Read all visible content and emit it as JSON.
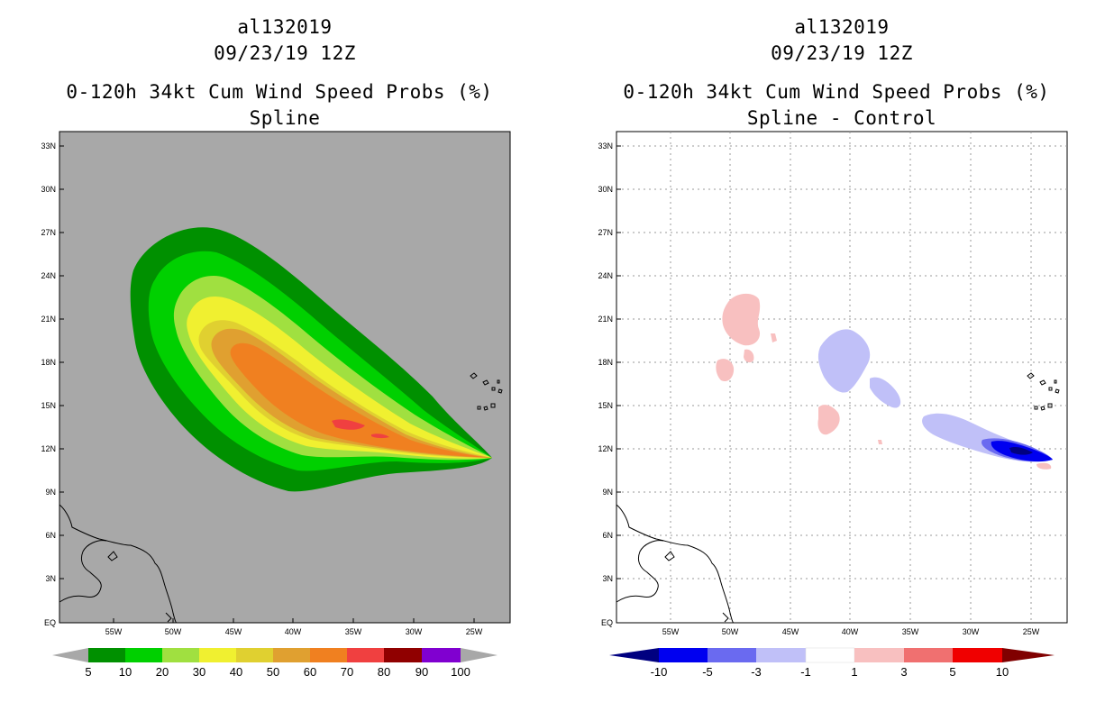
{
  "left": {
    "storm_id": "al132019",
    "datetime": "09/23/19 12Z",
    "title": "0-120h 34kt Cum Wind Speed Probs (%)",
    "subtitle": "Spline"
  },
  "right": {
    "storm_id": "al132019",
    "datetime": "09/23/19 12Z",
    "title": "0-120h 34kt Cum Wind Speed Probs (%)",
    "subtitle": "Spline - Control"
  },
  "axes": {
    "lat_labels": [
      "33N",
      "30N",
      "27N",
      "24N",
      "21N",
      "18N",
      "15N",
      "12N",
      "9N",
      "6N",
      "3N",
      "EQ"
    ],
    "lon_labels": [
      "55W",
      "50W",
      "45W",
      "40W",
      "35W",
      "30W",
      "25W"
    ]
  },
  "left_colorbar": {
    "colors": [
      "#009000",
      "#00d000",
      "#a0e040",
      "#f0f030",
      "#e0d030",
      "#e0a030",
      "#f08020",
      "#f04040",
      "#900000",
      "#8000d0"
    ],
    "labels": [
      "5",
      "10",
      "20",
      "30",
      "40",
      "50",
      "60",
      "70",
      "80",
      "90",
      "100"
    ]
  },
  "right_colorbar": {
    "colors": [
      "#000080",
      "#0000f0",
      "#6a6af0",
      "#c0c0f8",
      "#ffffff",
      "#f8c0c0",
      "#f07070",
      "#f00000",
      "#800000"
    ],
    "labels": [
      "-10",
      "-5",
      "-3",
      "-1",
      "1",
      "3",
      "5",
      "10"
    ]
  },
  "colors": {
    "ocean_bg": "#a8a8a8",
    "border": "#000000"
  }
}
